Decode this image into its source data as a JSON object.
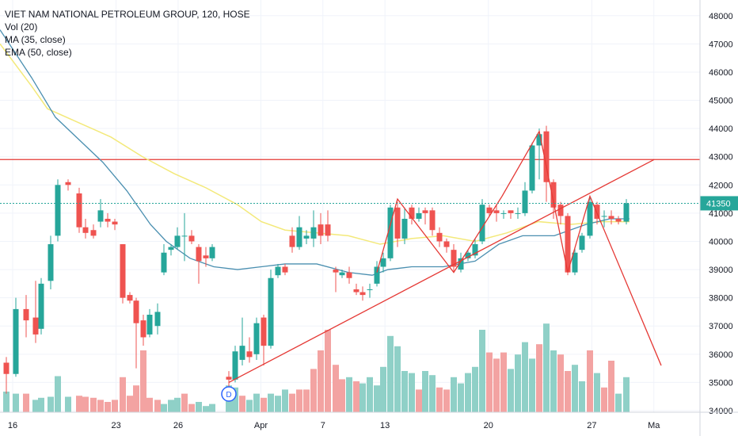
{
  "legend": {
    "title": "VIET NAM NATIONAL PETROLEUM GROUP, 120, HOSE",
    "vol": "Vol (20)",
    "ma": "MA (35, close)",
    "ema": "EMA (50, close)"
  },
  "colors": {
    "up": "#26a69a",
    "down": "#ef5350",
    "vol_up": "#8fd0c7",
    "vol_down": "#f3a3a2",
    "ma_line": "#4a8fb0",
    "ema_line": "#f3e97a",
    "drawing": "#e53935",
    "price_line": "#26a69a",
    "marker": "#2962ff"
  },
  "chart_data": {
    "type": "candlestick",
    "ylim": [
      34000,
      48500
    ],
    "y_ticks": [
      34000,
      35000,
      36000,
      37000,
      38000,
      39000,
      40000,
      41000,
      42000,
      43000,
      44000,
      45000,
      46000,
      47000,
      48000
    ],
    "x_tick_labels": [
      {
        "label": "16",
        "bar": 0
      },
      {
        "label": "23",
        "bar": 10
      },
      {
        "label": "26",
        "bar": 16
      },
      {
        "label": "Apr",
        "bar": 24
      },
      {
        "label": "7",
        "bar": 30
      },
      {
        "label": "13",
        "bar": 36
      },
      {
        "label": "20",
        "bar": 46
      },
      {
        "label": "27",
        "bar": 56
      },
      {
        "label": "Ma",
        "bar": 62
      }
    ],
    "x_range": [
      0,
      62
    ],
    "last_price": 41350,
    "candles": [
      {
        "o": 35500,
        "h": 35700,
        "l": 34800,
        "c": 35200
      },
      {
        "o": 35300,
        "h": 37900,
        "l": 35300,
        "c": 37600
      },
      {
        "o": 37700,
        "h": 37900,
        "l": 36600,
        "c": 37200
      },
      {
        "o": 37500,
        "h": 38500,
        "l": 36300,
        "c": 36600
      },
      {
        "o": 36700,
        "h": 38700,
        "l": 36700,
        "c": 38600
      },
      {
        "o": 38400,
        "h": 40100,
        "l": 38200,
        "c": 39900
      },
      {
        "o": 40100,
        "h": 42200,
        "l": 40100,
        "c": 42100
      },
      {
        "o": 42100,
        "h": 42100,
        "l": 41500,
        "c": 42100
      },
      {
        "o": 41800,
        "h": 41800,
        "l": 40100,
        "c": 40400
      },
      {
        "o": 40600,
        "h": 40600,
        "l": 40100,
        "c": 40300
      },
      {
        "o": 40500,
        "h": 40600,
        "l": 40100,
        "c": 40400
      },
      {
        "o": 40700,
        "h": 41600,
        "l": 40600,
        "c": 41200
      },
      {
        "o": 40600,
        "h": 40800,
        "l": 40400,
        "c": 40800
      },
      {
        "o": 40700,
        "h": 40700,
        "l": 40400,
        "c": 40500
      },
      {
        "o": 39900,
        "h": 39900,
        "l": 37900,
        "c": 38000
      },
      {
        "o": 38100,
        "h": 38200,
        "l": 37800,
        "c": 38000
      },
      {
        "o": 37900,
        "h": 38000,
        "l": 35400,
        "c": 37200
      },
      {
        "o": 37200,
        "h": 37400,
        "l": 36300,
        "c": 36600
      },
      {
        "o": 36800,
        "h": 37700,
        "l": 36800,
        "c": 37500
      },
      {
        "o": 38900,
        "h": 39900,
        "l": 38800,
        "c": 39600
      },
      {
        "o": 39600,
        "h": 39800,
        "l": 39400,
        "c": 39800
      },
      {
        "o": 39800,
        "h": 40500,
        "l": 39800,
        "c": 40200
      },
      {
        "o": 40100,
        "h": 41000,
        "l": 39400,
        "c": 40300
      },
      {
        "o": 40300,
        "h": 40400,
        "l": 39900,
        "c": 40200
      },
      {
        "o": 39900,
        "h": 39900,
        "l": 38200,
        "c": 39200
      },
      {
        "o": 39500,
        "h": 39800,
        "l": 39000,
        "c": 39500
      },
      {
        "o": 39600,
        "h": 39900,
        "l": 39400,
        "c": 39800
      },
      {
        "o": 35200,
        "h": 35400,
        "l": 34700,
        "c": 35100
      },
      {
        "o": 35100,
        "h": 36200,
        "l": 35000,
        "c": 36200
      },
      {
        "o": 35700,
        "h": 37300,
        "l": 35600,
        "c": 36300
      },
      {
        "o": 36200,
        "h": 36700,
        "l": 35800,
        "c": 36100
      },
      {
        "o": 36000,
        "h": 36700,
        "l": 35900,
        "c": 36600
      }
    ],
    "candles_note": "",
    "volume_max": 100,
    "volume": []
  }
}
